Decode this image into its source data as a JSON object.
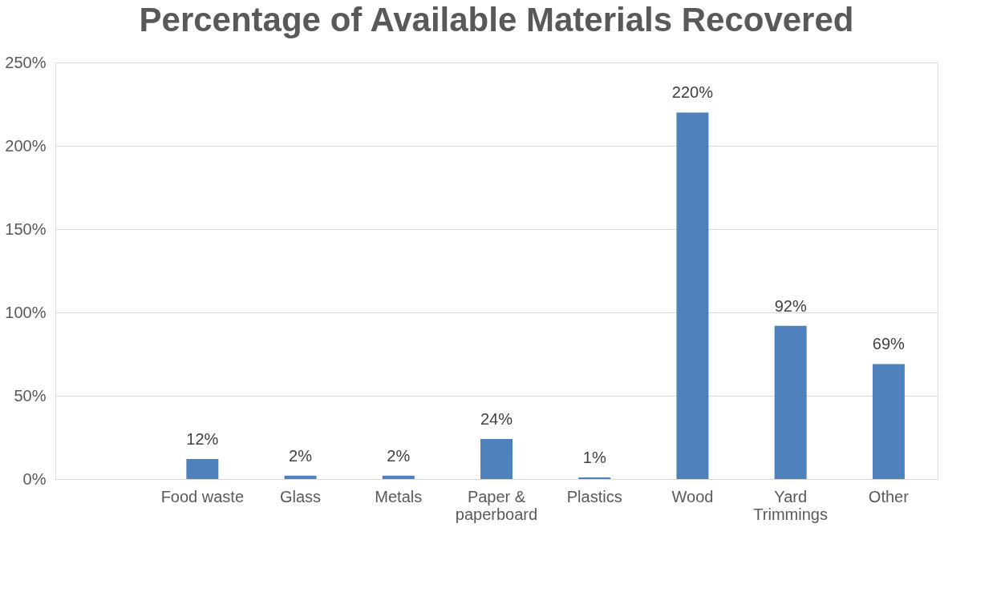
{
  "chart_data": {
    "type": "bar",
    "title": "Percentage of Available Materials Recovered",
    "categories": [
      null,
      "Food waste",
      "Glass",
      "Metals",
      "Paper & paperboard",
      "Plastics",
      "Wood",
      "Yard Trimmings",
      "Other"
    ],
    "values": [
      null,
      12,
      2,
      2,
      24,
      1,
      220,
      92,
      69
    ],
    "value_labels": [
      null,
      "12%",
      "2%",
      "2%",
      "24%",
      "1%",
      "220%",
      "92%",
      "69%"
    ],
    "color": "#4f81bd",
    "ylim": [
      0,
      250
    ],
    "yticks": [
      {
        "value": 0,
        "label": "0%"
      },
      {
        "value": 50,
        "label": "50%"
      },
      {
        "value": 100,
        "label": "100%"
      },
      {
        "value": 150,
        "label": "150%"
      },
      {
        "value": 200,
        "label": "200%"
      },
      {
        "value": 250,
        "label": "250%"
      }
    ],
    "grid": "y"
  }
}
